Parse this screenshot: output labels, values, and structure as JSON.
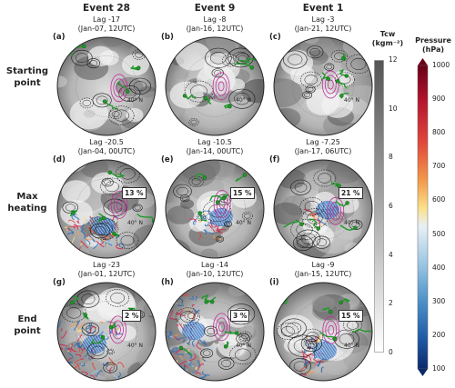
{
  "columns": [
    "Event 28",
    "Event 9",
    "Event 1"
  ],
  "rows": [
    "Starting\npoint",
    "Max\nheating",
    "End\npoint"
  ],
  "panels": [
    {
      "label": "(a)",
      "lag": "Lag -17",
      "date": "(Jan-07, 12UTC)",
      "pct": "",
      "plume": "none",
      "lat": "40° N"
    },
    {
      "label": "(b)",
      "lag": "Lag -8",
      "date": "(Jan-16, 12UTC)",
      "pct": "",
      "plume": "none",
      "lat": "40° N"
    },
    {
      "label": "(c)",
      "lag": "Lag -3",
      "date": "(Jan-21, 12UTC)",
      "pct": "",
      "plume": "none",
      "lat": "40° N"
    },
    {
      "label": "(d)",
      "lag": "Lag -20.5",
      "date": "(Jan-04, 00UTC)",
      "pct": "13 %",
      "plume": "medium",
      "lat": "40° N"
    },
    {
      "label": "(e)",
      "lag": "Lag -10.5",
      "date": "(Jan-14, 00UTC)",
      "pct": "15 %",
      "plume": "small",
      "lat": "40° N"
    },
    {
      "label": "(f)",
      "lag": "Lag -7.25",
      "date": "(Jan-17, 06UTC)",
      "pct": "21 %",
      "plume": "tiny",
      "lat": "40° N"
    },
    {
      "label": "(g)",
      "lag": "Lag -23",
      "date": "(Jan-01, 12UTC)",
      "pct": "2 %",
      "plume": "large",
      "lat": "40° N"
    },
    {
      "label": "(h)",
      "lag": "Lag -14",
      "date": "(Jan-10, 12UTC)",
      "pct": "3 %",
      "plume": "wide",
      "lat": "40° N"
    },
    {
      "label": "(i)",
      "lag": "Lag -9",
      "date": "(Jan-15, 12UTC)",
      "pct": "15 %",
      "plume": "narrow",
      "lat": "40° N"
    }
  ],
  "colorbar_tcw": {
    "title_line1": "Tcw",
    "title_line2": "(kgm⁻²)",
    "ticks": [
      "12",
      "10",
      "8",
      "6",
      "4",
      "2",
      "0"
    ],
    "range": [
      0,
      12
    ]
  },
  "colorbar_pressure": {
    "title_line1": "Pressure",
    "title_line2": "(hPa)",
    "ticks": [
      "1000",
      "900",
      "800",
      "700",
      "600",
      "500",
      "400",
      "300",
      "200",
      "100"
    ],
    "range": [
      100,
      1000
    ]
  },
  "colors": {
    "contour": "#1a1a1a",
    "front": "#1f9a2a",
    "pv": "#c0309a",
    "plume_high": "#d8204a",
    "plume_low": "#2a6cc0"
  }
}
